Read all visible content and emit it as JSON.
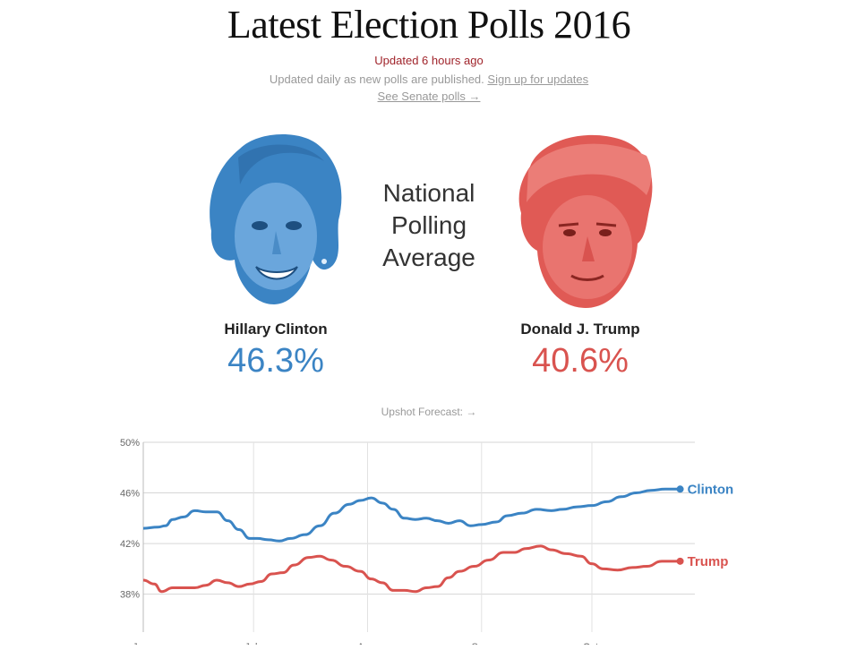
{
  "page": {
    "title": "Latest Election Polls 2016",
    "updated": "Updated 6 hours ago",
    "subnote": "Updated daily as new polls are published.",
    "signup_link": "Sign up for updates",
    "senate_link": "See Senate polls →",
    "center_label": [
      "National",
      "Polling",
      "Average"
    ],
    "forecast_link": "Upshot Forecast: →"
  },
  "candidates": [
    {
      "name": "Hillary Clinton",
      "pct": "46.3%",
      "color": "#3b84c4",
      "icon": "clinton-portrait-icon"
    },
    {
      "name": "Donald J. Trump",
      "pct": "40.6%",
      "color": "#d9534f",
      "icon": "trump-portrait-icon"
    }
  ],
  "chart_data": {
    "type": "line",
    "ylim": [
      35,
      50
    ],
    "yticks": [
      38,
      42,
      46,
      50
    ],
    "ytick_labels": [
      "38%",
      "42%",
      "46%",
      "50%"
    ],
    "x_day_range": [
      0,
      150
    ],
    "xticks": [
      {
        "label": "June",
        "day": 0
      },
      {
        "label": "July",
        "day": 30
      },
      {
        "label": "Aug.",
        "day": 61
      },
      {
        "label": "Sep.",
        "day": 92
      },
      {
        "label": "Oct.",
        "day": 122
      }
    ],
    "grid": true,
    "series": [
      {
        "name": "Clinton",
        "color": "#3b84c4",
        "points": [
          [
            0,
            43.2
          ],
          [
            4,
            43.3
          ],
          [
            6,
            43.4
          ],
          [
            8,
            43.9
          ],
          [
            11,
            44.1
          ],
          [
            14,
            44.6
          ],
          [
            17,
            44.5
          ],
          [
            20,
            44.5
          ],
          [
            23,
            43.8
          ],
          [
            26,
            43.1
          ],
          [
            29,
            42.4
          ],
          [
            31,
            42.4
          ],
          [
            34,
            42.3
          ],
          [
            37,
            42.2
          ],
          [
            40,
            42.4
          ],
          [
            44,
            42.7
          ],
          [
            48,
            43.4
          ],
          [
            52,
            44.4
          ],
          [
            56,
            45.1
          ],
          [
            59,
            45.4
          ],
          [
            62,
            45.6
          ],
          [
            65,
            45.2
          ],
          [
            68,
            44.7
          ],
          [
            71,
            44.0
          ],
          [
            74,
            43.9
          ],
          [
            77,
            44.0
          ],
          [
            80,
            43.8
          ],
          [
            83,
            43.6
          ],
          [
            86,
            43.8
          ],
          [
            89,
            43.4
          ],
          [
            92,
            43.5
          ],
          [
            96,
            43.7
          ],
          [
            99,
            44.2
          ],
          [
            103,
            44.4
          ],
          [
            107,
            44.7
          ],
          [
            111,
            44.6
          ],
          [
            114,
            44.7
          ],
          [
            118,
            44.9
          ],
          [
            122,
            45.0
          ],
          [
            126,
            45.3
          ],
          [
            130,
            45.7
          ],
          [
            134,
            46.0
          ],
          [
            138,
            46.2
          ],
          [
            142,
            46.3
          ],
          [
            146,
            46.3
          ]
        ]
      },
      {
        "name": "Trump",
        "color": "#d9534f",
        "points": [
          [
            0,
            39.1
          ],
          [
            3,
            38.8
          ],
          [
            5,
            38.2
          ],
          [
            8,
            38.5
          ],
          [
            11,
            38.5
          ],
          [
            14,
            38.5
          ],
          [
            17,
            38.7
          ],
          [
            20,
            39.1
          ],
          [
            23,
            38.9
          ],
          [
            26,
            38.6
          ],
          [
            29,
            38.8
          ],
          [
            32,
            39.0
          ],
          [
            35,
            39.6
          ],
          [
            38,
            39.7
          ],
          [
            41,
            40.3
          ],
          [
            45,
            40.9
          ],
          [
            48,
            41.0
          ],
          [
            51,
            40.7
          ],
          [
            55,
            40.2
          ],
          [
            59,
            39.8
          ],
          [
            62,
            39.2
          ],
          [
            65,
            38.9
          ],
          [
            68,
            38.3
          ],
          [
            71,
            38.3
          ],
          [
            74,
            38.2
          ],
          [
            77,
            38.5
          ],
          [
            80,
            38.6
          ],
          [
            83,
            39.3
          ],
          [
            86,
            39.8
          ],
          [
            90,
            40.2
          ],
          [
            94,
            40.7
          ],
          [
            98,
            41.3
          ],
          [
            101,
            41.3
          ],
          [
            104,
            41.6
          ],
          [
            108,
            41.8
          ],
          [
            111,
            41.5
          ],
          [
            115,
            41.2
          ],
          [
            119,
            41.0
          ],
          [
            122,
            40.4
          ],
          [
            125,
            40.0
          ],
          [
            129,
            39.9
          ],
          [
            133,
            40.1
          ],
          [
            137,
            40.2
          ],
          [
            141,
            40.6
          ],
          [
            146,
            40.6
          ]
        ]
      }
    ]
  }
}
